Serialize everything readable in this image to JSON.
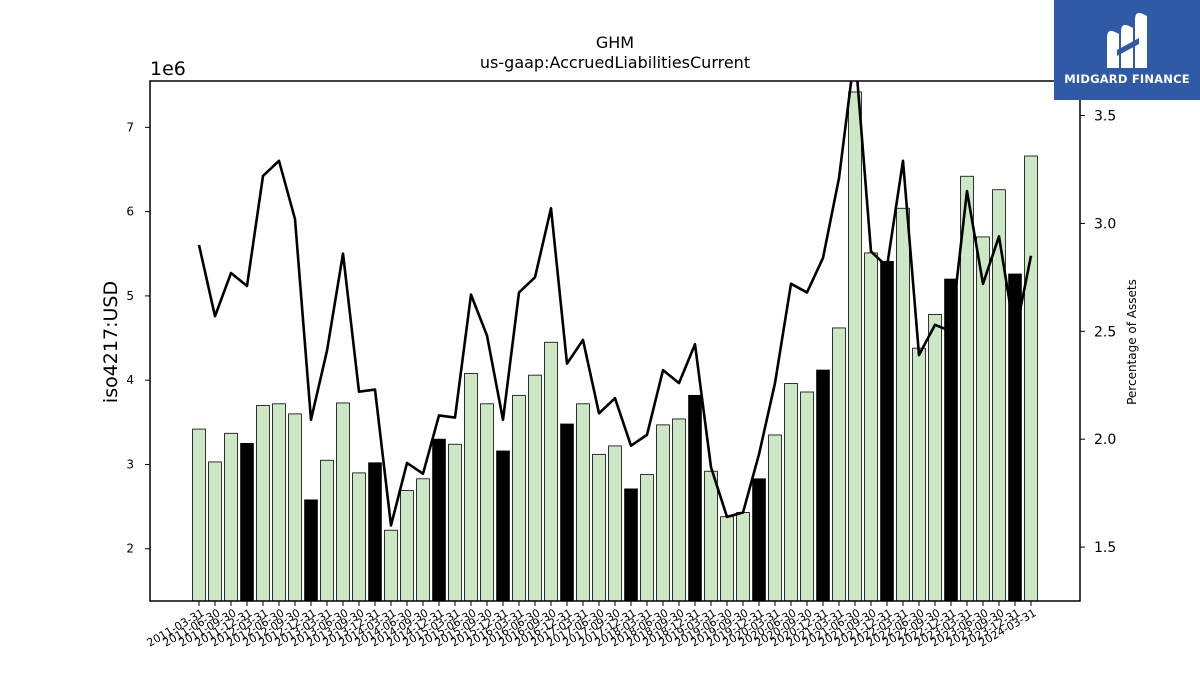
{
  "chart_data": {
    "type": "bar",
    "title": "GHM",
    "subtitle": "us-gaap:AccruedLiabilitiesCurrent",
    "ylabel": "iso4217:USD",
    "y2label": "Percentage of Assets",
    "y_offset_label": "1e6",
    "ylim": [
      1.38,
      7.55
    ],
    "y2lim": [
      1.25,
      3.66
    ],
    "yticks": [
      2,
      3,
      4,
      5,
      6,
      7
    ],
    "y2ticks": [
      1.5,
      2.0,
      2.5,
      3.0,
      3.5
    ],
    "ytick_labels": [
      "2",
      "3",
      "4",
      "5",
      "6",
      "7"
    ],
    "y2tick_labels": [
      "1.5",
      "2.0",
      "2.5",
      "3.0",
      "3.5"
    ],
    "categories": [
      "2011-03-31",
      "2011-06-30",
      "2011-09-30",
      "2011-12-31",
      "2012-03-31",
      "2012-06-30",
      "2012-09-30",
      "2012-12-31",
      "2013-03-31",
      "2013-06-30",
      "2013-09-30",
      "2013-12-31",
      "2014-03-31",
      "2014-06-30",
      "2014-09-30",
      "2014-12-31",
      "2015-03-31",
      "2015-06-30",
      "2015-09-30",
      "2015-12-31",
      "2016-03-31",
      "2016-06-30",
      "2016-09-30",
      "2016-12-31",
      "2017-03-31",
      "2017-06-30",
      "2017-09-30",
      "2017-12-31",
      "2018-03-31",
      "2018-06-30",
      "2018-09-30",
      "2018-12-31",
      "2019-03-31",
      "2019-06-30",
      "2019-09-30",
      "2019-12-31",
      "2020-03-31",
      "2020-06-30",
      "2020-09-30",
      "2020-12-31",
      "2021-03-31",
      "2021-06-30",
      "2021-09-30",
      "2021-12-31",
      "2022-03-31",
      "2022-06-30",
      "2022-09-30",
      "2022-12-31",
      "2023-03-31",
      "2023-06-30",
      "2023-09-30",
      "2023-12-31",
      "2024-03-31"
    ],
    "xtick_labels": [
      "2011-03-31",
      "2011-06-30",
      "2011-09-30",
      "2011-12-31",
      "2012-03-31",
      "2012-06-30",
      "2012-09-30",
      "2012-12-31",
      "2013-03-31",
      "2013-06-30",
      "2013-09-30",
      "2013-12-31",
      "2014-03-31",
      "2014-06-30",
      "2014-09-30",
      "2014-12-31",
      "2015-03-31",
      "2015-06-30",
      "2015-09-30",
      "2015-12-31",
      "2016-03-31",
      "2016-06-30",
      "2016-09-30",
      "2016-12-31",
      "2017-03-31",
      "2017-06-30",
      "2017-09-30",
      "2017-12-31",
      "2018-03-31",
      "2018-06-30",
      "2018-09-30",
      "2018-12-31",
      "2019-03-31",
      "2019-06-30",
      "2019-09-30",
      "2019-12-31",
      "2020-03-31",
      "2020-06-30",
      "2020-09-30",
      "2020-12-31",
      "2021-03-31",
      "2021-06-30",
      "2021-09-30",
      "2021-12-31",
      "2022-03-31",
      "2022-06-30",
      "2022-09-30",
      "2022-12-31",
      "2023-03-31",
      "2023-06-30",
      "2023-09-30",
      "2023-12-31",
      "2024-03-31"
    ],
    "series": [
      {
        "type": "bar",
        "axis": "left",
        "values": [
          3.42,
          3.03,
          3.37,
          3.25,
          3.7,
          3.72,
          3.6,
          2.58,
          3.05,
          3.73,
          2.9,
          3.02,
          2.22,
          2.69,
          2.83,
          3.3,
          3.24,
          4.08,
          3.72,
          3.16,
          3.82,
          4.06,
          4.45,
          3.48,
          3.72,
          3.12,
          3.22,
          2.71,
          2.88,
          3.47,
          3.54,
          3.82,
          2.92,
          2.38,
          2.43,
          2.83,
          3.35,
          3.96,
          3.86,
          4.12,
          4.62,
          7.42,
          5.51,
          5.41,
          6.04,
          4.38,
          4.78,
          5.2,
          6.42,
          5.7,
          6.26,
          5.26,
          6.66
        ],
        "highlighted": [
          false,
          false,
          false,
          true,
          false,
          false,
          false,
          true,
          false,
          false,
          false,
          true,
          false,
          false,
          false,
          true,
          false,
          false,
          false,
          true,
          false,
          false,
          false,
          true,
          false,
          false,
          false,
          true,
          false,
          false,
          false,
          true,
          false,
          false,
          false,
          true,
          false,
          false,
          false,
          true,
          false,
          false,
          false,
          true,
          false,
          false,
          false,
          true,
          false,
          false,
          false,
          true,
          false
        ]
      },
      {
        "type": "line",
        "axis": "right",
        "values": [
          2.9,
          2.57,
          2.77,
          2.71,
          3.22,
          3.29,
          3.02,
          2.09,
          2.41,
          2.86,
          2.22,
          2.23,
          1.6,
          1.89,
          1.84,
          2.11,
          2.1,
          2.67,
          2.48,
          2.09,
          2.68,
          2.75,
          3.07,
          2.35,
          2.46,
          2.12,
          2.19,
          1.97,
          2.02,
          2.32,
          2.26,
          2.44,
          1.87,
          1.64,
          1.66,
          1.93,
          2.26,
          2.72,
          2.68,
          2.84,
          3.21,
          3.8,
          2.87,
          2.8,
          3.29,
          2.39,
          2.53,
          2.5,
          3.15,
          2.72,
          2.94,
          2.48,
          2.85
        ]
      }
    ],
    "colors": {
      "bar_fill": "#cde8c4",
      "bar_highlight": "#000000",
      "bar_edge": "#000000",
      "line": "#000000"
    },
    "grid": false,
    "legend": "none"
  },
  "logo": {
    "text": "MIDGARD FINANCE",
    "background": "#2f5aa8"
  }
}
